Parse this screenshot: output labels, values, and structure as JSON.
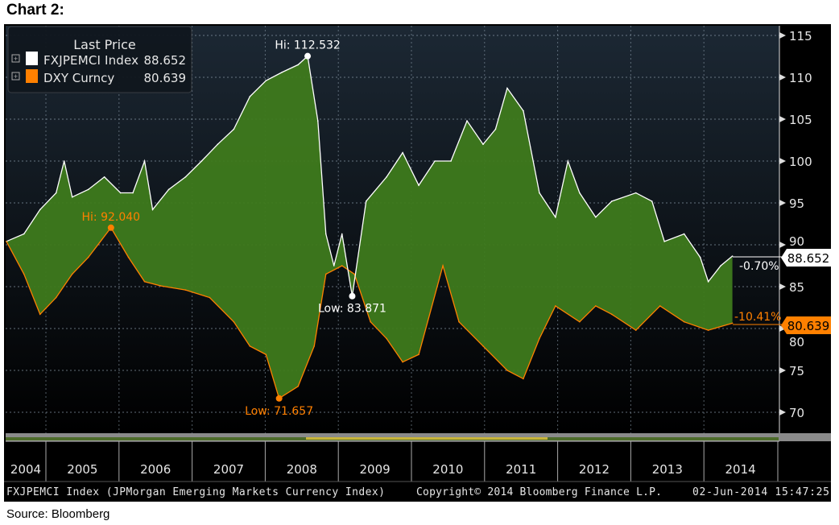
{
  "title": "Chart 2:",
  "source": "Source: Bloomberg",
  "colors": {
    "fxjpemci": "#ffffff",
    "dxy": "#ff8000",
    "fill": "#3e7a1c",
    "background": "#000000"
  },
  "legend": {
    "header": "Last Price",
    "items": [
      {
        "name": "FXJPEMCI Index",
        "value": "88.652",
        "color": "#ffffff"
      },
      {
        "name": "DXY Curncy",
        "value": "80.639",
        "color": "#ff8000"
      }
    ]
  },
  "footer": {
    "description": "FXJPEMCI Index (JPMorgan Emerging Markets Currency Index)",
    "copyright": "Copyright© 2014 Bloomberg Finance L.P.",
    "timestamp": "02-Jun-2014 15:47:25"
  },
  "chart_data": {
    "type": "area",
    "title": "",
    "xlabel": "",
    "ylabel": "",
    "ylim": [
      69,
      116
    ],
    "y_ticks": [
      "115",
      "110",
      "105",
      "100",
      "95",
      "90",
      "85",
      "80",
      "75",
      "70"
    ],
    "x_tick_labels": [
      "2004",
      "2005",
      "2006",
      "2007",
      "2008",
      "2009",
      "2010",
      "2011",
      "2012",
      "2013",
      "2014"
    ],
    "grid": true,
    "legend_position": "top-left",
    "series": [
      {
        "name": "FXJPEMCI Index",
        "last": "88.652",
        "change": "-0.70%",
        "points": [
          [
            2004.46,
            90.4
          ],
          [
            2004.7,
            91.3
          ],
          [
            2004.92,
            94.2
          ],
          [
            2005.14,
            96.2
          ],
          [
            2005.25,
            100.0
          ],
          [
            2005.36,
            95.7
          ],
          [
            2005.58,
            96.6
          ],
          [
            2005.8,
            98.1
          ],
          [
            2006.02,
            96.2
          ],
          [
            2006.19,
            96.2
          ],
          [
            2006.35,
            100.0
          ],
          [
            2006.46,
            94.2
          ],
          [
            2006.68,
            96.6
          ],
          [
            2006.91,
            98.1
          ],
          [
            2007.13,
            100.0
          ],
          [
            2007.35,
            102.0
          ],
          [
            2007.57,
            103.8
          ],
          [
            2007.79,
            107.7
          ],
          [
            2008.01,
            109.6
          ],
          [
            2008.23,
            110.6
          ],
          [
            2008.45,
            111.5
          ],
          [
            2008.58,
            112.532
          ],
          [
            2008.72,
            104.8
          ],
          [
            2008.83,
            91.3
          ],
          [
            2008.94,
            87.5
          ],
          [
            2009.05,
            91.3
          ],
          [
            2009.19,
            83.871
          ],
          [
            2009.38,
            95.2
          ],
          [
            2009.66,
            98.1
          ],
          [
            2009.88,
            101.0
          ],
          [
            2010.1,
            97.1
          ],
          [
            2010.32,
            100.0
          ],
          [
            2010.54,
            100.0
          ],
          [
            2010.76,
            104.8
          ],
          [
            2010.98,
            102.0
          ],
          [
            2011.15,
            103.8
          ],
          [
            2011.31,
            108.7
          ],
          [
            2011.53,
            106.0
          ],
          [
            2011.75,
            96.2
          ],
          [
            2011.97,
            93.3
          ],
          [
            2012.14,
            100.0
          ],
          [
            2012.3,
            96.2
          ],
          [
            2012.52,
            93.3
          ],
          [
            2012.74,
            95.2
          ],
          [
            2013.07,
            96.2
          ],
          [
            2013.29,
            95.2
          ],
          [
            2013.46,
            90.4
          ],
          [
            2013.73,
            91.3
          ],
          [
            2013.95,
            88.5
          ],
          [
            2014.06,
            85.6
          ],
          [
            2014.23,
            87.5
          ],
          [
            2014.39,
            88.652
          ]
        ]
      },
      {
        "name": "DXY Curncy",
        "last": "80.639",
        "change": "-10.41%",
        "points": [
          [
            2004.46,
            90.4
          ],
          [
            2004.7,
            86.5
          ],
          [
            2004.92,
            81.7
          ],
          [
            2005.14,
            83.7
          ],
          [
            2005.36,
            86.5
          ],
          [
            2005.58,
            88.5
          ],
          [
            2005.89,
            92.04
          ],
          [
            2006.13,
            88.5
          ],
          [
            2006.35,
            85.6
          ],
          [
            2006.57,
            85.1
          ],
          [
            2006.91,
            84.6
          ],
          [
            2007.24,
            83.7
          ],
          [
            2007.57,
            80.8
          ],
          [
            2007.79,
            77.9
          ],
          [
            2008.01,
            76.9
          ],
          [
            2008.19,
            71.657
          ],
          [
            2008.45,
            73.1
          ],
          [
            2008.67,
            77.9
          ],
          [
            2008.83,
            86.5
          ],
          [
            2009.05,
            87.5
          ],
          [
            2009.22,
            86.5
          ],
          [
            2009.44,
            80.8
          ],
          [
            2009.66,
            78.8
          ],
          [
            2009.88,
            76.0
          ],
          [
            2010.1,
            76.9
          ],
          [
            2010.43,
            87.5
          ],
          [
            2010.65,
            80.8
          ],
          [
            2010.98,
            77.9
          ],
          [
            2011.31,
            75.0
          ],
          [
            2011.53,
            74.0
          ],
          [
            2011.75,
            78.8
          ],
          [
            2011.97,
            82.7
          ],
          [
            2012.3,
            80.8
          ],
          [
            2012.52,
            82.7
          ],
          [
            2012.74,
            81.7
          ],
          [
            2013.07,
            79.8
          ],
          [
            2013.4,
            82.7
          ],
          [
            2013.73,
            80.8
          ],
          [
            2014.06,
            79.8
          ],
          [
            2014.39,
            80.639
          ]
        ]
      }
    ],
    "annotations": [
      {
        "label": "Hi: 112.532",
        "series": 0,
        "t": 2008.58,
        "v": 112.532,
        "pos": "above"
      },
      {
        "label": "Low: 83.871",
        "series": 0,
        "t": 2009.19,
        "v": 83.871,
        "pos": "below"
      },
      {
        "label": "Hi: 92.040",
        "series": 1,
        "t": 2005.89,
        "v": 92.04,
        "pos": "above"
      },
      {
        "label": "Low: 71.657",
        "series": 1,
        "t": 2008.19,
        "v": 71.657,
        "pos": "below"
      }
    ]
  }
}
